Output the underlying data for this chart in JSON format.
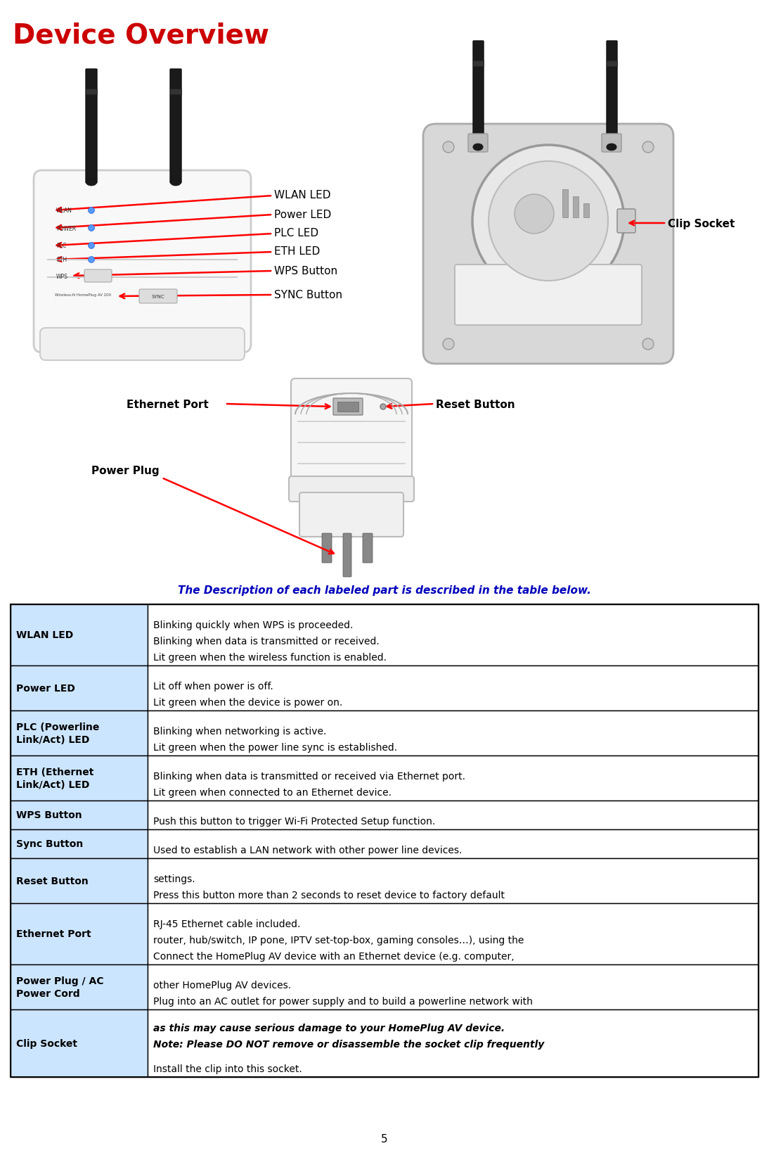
{
  "title": "Device Overview",
  "title_color": "#CC0000",
  "subtitle": "The Description of each labeled part is described in the table below.",
  "subtitle_color": "#0000BB",
  "page_number": "5",
  "bg_color": "#FFFFFF",
  "table_border_color": "#000000",
  "table_col1_bg": "#CCE5FF",
  "table_col2_bg": "#FFFFFF",
  "table_rows": [
    {
      "col1": "WLAN LED",
      "col2_lines": [
        "Lit green when the wireless function is enabled.",
        "Blinking when data is transmitted or received.",
        "Blinking quickly when WPS is proceeded."
      ],
      "note": null
    },
    {
      "col1": "Power LED",
      "col2_lines": [
        "Lit green when the device is power on.",
        "Lit off when power is off."
      ],
      "note": null
    },
    {
      "col1": "PLC (Powerline\nLink/Act) LED",
      "col2_lines": [
        "Lit green when the power line sync is established.",
        "Blinking when networking is active."
      ],
      "note": null
    },
    {
      "col1": "ETH (Ethernet\nLink/Act) LED",
      "col2_lines": [
        "Lit green when connected to an Ethernet device.",
        "Blinking when data is transmitted or received via Ethernet port."
      ],
      "note": null
    },
    {
      "col1": "WPS Button",
      "col2_lines": [
        "Push this button to trigger Wi-Fi Protected Setup function."
      ],
      "note": null
    },
    {
      "col1": "Sync Button",
      "col2_lines": [
        "Used to establish a LAN network with other power line devices."
      ],
      "note": null
    },
    {
      "col1": "Reset Button",
      "col2_lines": [
        "Press this button more than 2 seconds to reset device to factory default",
        "settings."
      ],
      "note": null
    },
    {
      "col1": "Ethernet Port",
      "col2_lines": [
        "Connect the HomePlug AV device with an Ethernet device (e.g. computer,",
        "router, hub/switch, IP pone, IPTV set-top-box, gaming consoles…), using the",
        "RJ-45 Ethernet cable included."
      ],
      "note": null
    },
    {
      "col1": "Power Plug / AC\nPower Cord",
      "col2_lines": [
        "Plug into an AC outlet for power supply and to build a powerline network with",
        "other HomePlug AV devices."
      ],
      "note": null
    },
    {
      "col1": "Clip Socket",
      "col2_lines": [
        "Install the clip into this socket."
      ],
      "note": "Note: Please DO NOT remove or disassemble the socket clip frequently\nas this may cause serious damage to your HomePlug AV device."
    }
  ]
}
